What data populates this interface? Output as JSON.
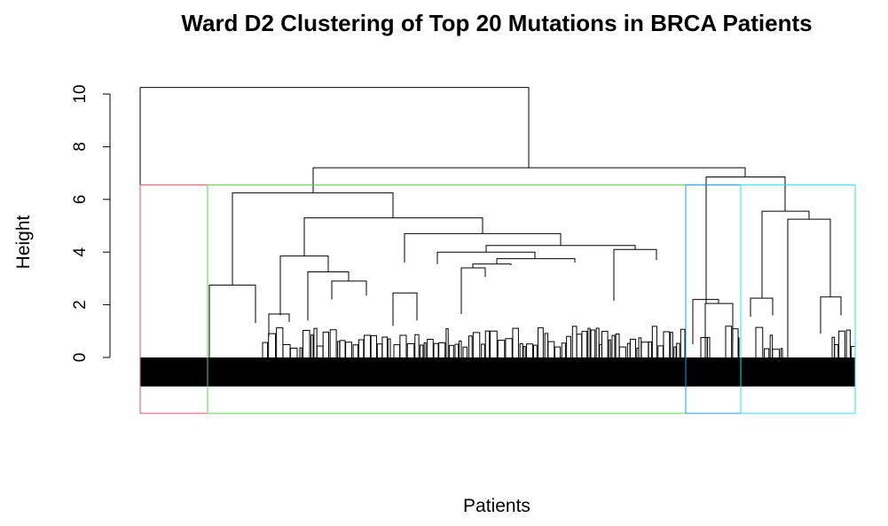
{
  "chart_data": {
    "type": "dendrogram",
    "title": "Ward D2 Clustering of Top 20 Mutations in BRCA Patients",
    "xlabel": "Patients",
    "ylabel": "Height",
    "ylim": [
      0,
      10.3
    ],
    "y_ticks": [
      0,
      2,
      4,
      6,
      8,
      10
    ],
    "y_tick_labels": [
      "0",
      "2",
      "4",
      "6",
      "8",
      "10"
    ],
    "grid": false,
    "leaf_band": {
      "type": "dense-black-leaves",
      "depth_below_zero": 1.1
    },
    "merges": [
      {
        "x1": 158,
        "x2": 596,
        "h": 10.25,
        "d1": 0.0,
        "d2": 7.2
      },
      {
        "x1": 353,
        "x2": 840,
        "h": 7.2,
        "d1": 6.25,
        "d2": 6.85
      },
      {
        "x1": 262,
        "x2": 443,
        "h": 6.25,
        "d1": 2.75,
        "d2": 5.3
      },
      {
        "x1": 796,
        "x2": 885,
        "h": 6.85,
        "d1": 2.05,
        "d2": 5.55
      },
      {
        "x1": 859,
        "x2": 912,
        "h": 5.55,
        "d1": 2.25,
        "d2": 5.25
      },
      {
        "x1": 888,
        "x2": 936,
        "h": 5.25,
        "d1": 0.0,
        "d2": 2.3
      },
      {
        "x1": 343,
        "x2": 544,
        "h": 5.3,
        "d1": 3.85,
        "d2": 4.7
      },
      {
        "x1": 456,
        "x2": 632,
        "h": 4.7,
        "d1": 3.6,
        "d2": 4.25
      },
      {
        "x1": 548,
        "x2": 716,
        "h": 4.25,
        "d1": 4.0,
        "d2": 4.1
      },
      {
        "x1": 493,
        "x2": 603,
        "h": 4.0,
        "d1": 3.55,
        "d2": 3.75
      },
      {
        "x1": 560,
        "x2": 648,
        "h": 3.75,
        "d1": 3.55,
        "d2": 3.6
      },
      {
        "x1": 533,
        "x2": 576,
        "h": 3.55,
        "d1": 3.4,
        "d2": 3.5
      },
      {
        "x1": 520,
        "x2": 547,
        "h": 3.4,
        "d1": 1.65,
        "d2": 3.05
      },
      {
        "x1": 692,
        "x2": 740,
        "h": 4.1,
        "d1": 2.15,
        "d2": 3.7
      },
      {
        "x1": 316,
        "x2": 370,
        "h": 3.85,
        "d1": 1.6,
        "d2": 3.25
      },
      {
        "x1": 347,
        "x2": 393,
        "h": 3.25,
        "d1": 1.4,
        "d2": 2.9
      },
      {
        "x1": 374,
        "x2": 413,
        "h": 2.9,
        "d1": 2.2,
        "d2": 2.35
      },
      {
        "x1": 236,
        "x2": 288,
        "h": 2.75,
        "d1": 0.0,
        "d2": 1.3
      },
      {
        "x1": 443,
        "x2": 470,
        "h": 2.45,
        "d1": 1.2,
        "d2": 1.4
      },
      {
        "x1": 781,
        "x2": 810,
        "h": 2.2,
        "d1": 0.5,
        "d2": 2.05
      },
      {
        "x1": 795,
        "x2": 826,
        "h": 2.05,
        "d1": 0.0,
        "d2": 0.6
      },
      {
        "x1": 846,
        "x2": 871,
        "h": 2.25,
        "d1": 1.55,
        "d2": 1.6
      },
      {
        "x1": 925,
        "x2": 948,
        "h": 2.3,
        "d1": 0.9,
        "d2": 1.6
      },
      {
        "x1": 303,
        "x2": 326,
        "h": 1.65,
        "d1": 0.8,
        "d2": 1.35
      }
    ],
    "cluster_boxes": [
      {
        "x1": 158,
        "x2": 234,
        "color": "#DF536B"
      },
      {
        "x1": 234,
        "x2": 835,
        "color": "#61D04F"
      },
      {
        "x1": 773,
        "x2": 835,
        "color": "#2297E6"
      },
      {
        "x1": 835,
        "x2": 964,
        "color": "#28E2E5"
      }
    ]
  }
}
